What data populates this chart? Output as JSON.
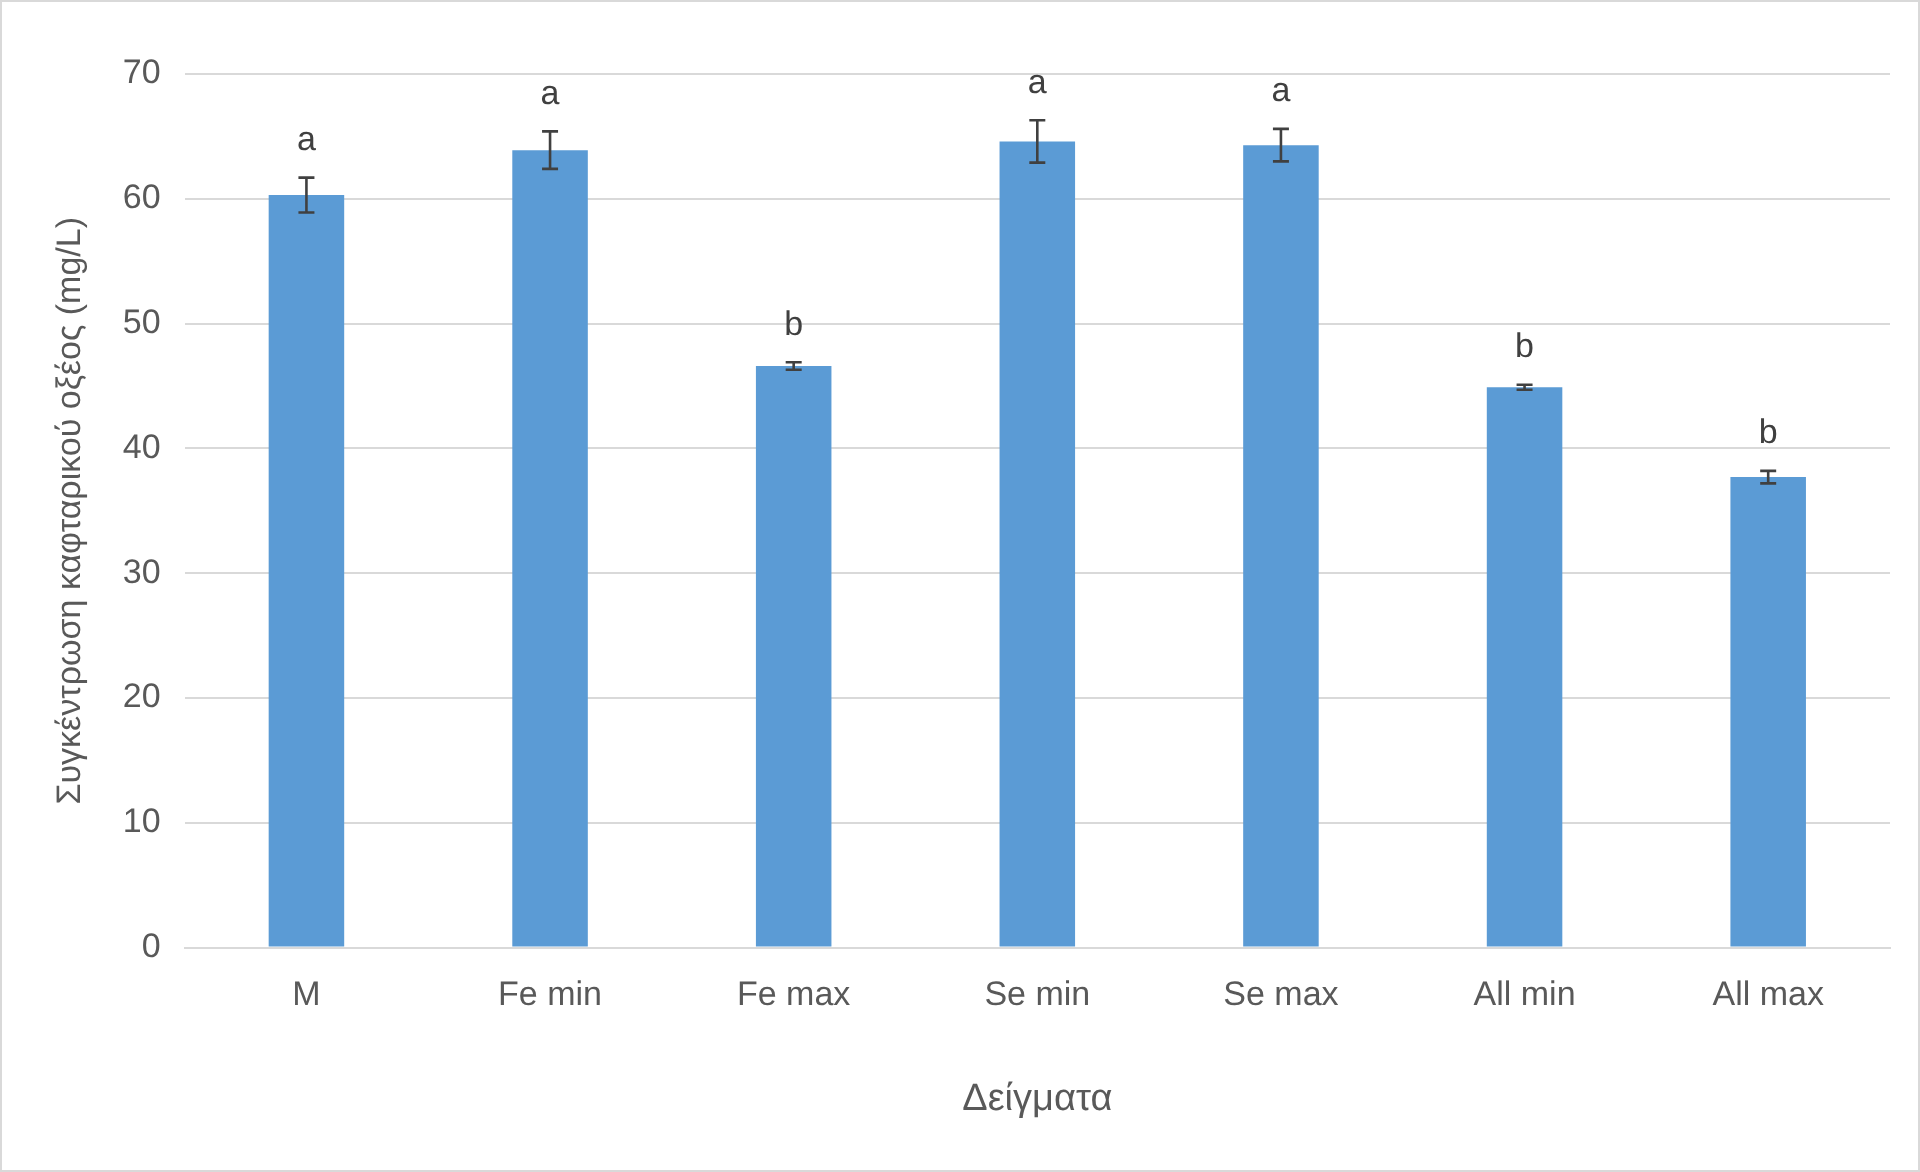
{
  "chart_data": {
    "type": "bar",
    "xlabel": "Δείγματα",
    "ylabel": "Συγκέντρωση καφταρικού οξέος (mg/L)",
    "categories": [
      "M",
      "Fe min",
      "Fe max",
      "Se min",
      "Se max",
      "All min",
      "All max"
    ],
    "values": [
      60.3,
      63.9,
      46.6,
      64.6,
      64.3,
      44.9,
      37.7
    ],
    "errors": [
      1.4,
      1.5,
      0.3,
      1.7,
      1.3,
      0.2,
      0.5
    ],
    "color": "#5b9bd5",
    "ylim": [
      0,
      70
    ],
    "yticks": [
      0,
      10,
      20,
      30,
      40,
      50,
      60,
      70
    ],
    "grid": "y",
    "legend": false,
    "annotations": [
      "a",
      "a",
      "b",
      "a",
      "a",
      "b",
      "b"
    ]
  }
}
